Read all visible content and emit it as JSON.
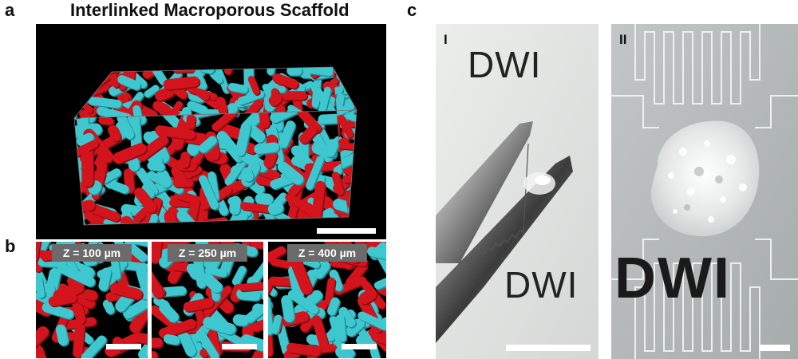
{
  "panel_a": {
    "letter": "a",
    "title": "Interlinked Macroporous Scaffold"
  },
  "panel_b": {
    "letter": "b",
    "slices": [
      {
        "label": "Z = 100 µm"
      },
      {
        "label": "Z = 250 µm"
      },
      {
        "label": "Z = 400 µm"
      }
    ]
  },
  "panel_c": {
    "letter": "c",
    "photos": [
      {
        "numeral": "I",
        "text_top": "DWI",
        "text_bottom": "DWI"
      },
      {
        "numeral": "II",
        "text_bottom": "DWI"
      }
    ]
  },
  "colors": {
    "cyan": "#3ec7cf",
    "red": "#d4141c",
    "background": "#000000"
  }
}
